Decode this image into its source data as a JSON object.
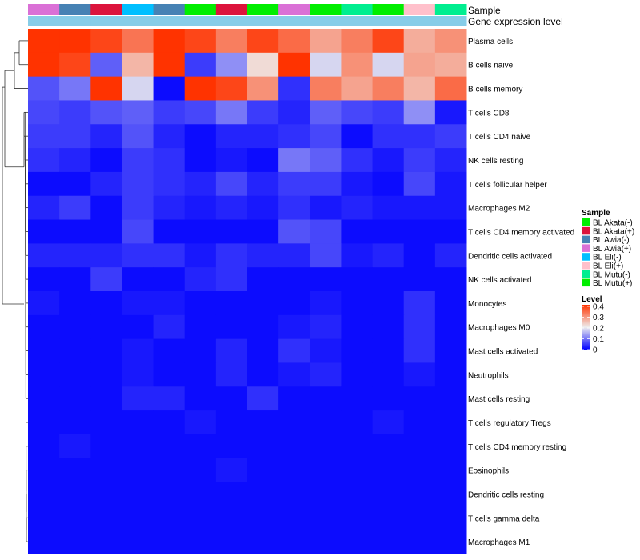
{
  "chart_data": {
    "type": "heatmap",
    "annotation_labels": {
      "sample": "Sample",
      "expression": "Gene expression level"
    },
    "rows": [
      "Plasma cells",
      "B cells naive",
      "B cells memory",
      "T cells CD8",
      "T cells CD4 naive",
      "NK cells resting",
      "T cells follicular helper",
      "Macrophages M2",
      "T cells CD4 memory activated",
      "Dendritic cells activated",
      "NK cells activated",
      "Monocytes",
      "Macrophages M0",
      "Mast cells activated",
      "Neutrophils",
      "Mast cells resting",
      "T cells regulatory  Tregs",
      "T cells CD4 memory resting",
      "Eosinophils",
      "Dendritic cells resting",
      "T cells gamma delta",
      "Macrophages M1"
    ],
    "sample_groups": [
      "BL Awia(+)",
      "BL Awia(-)",
      "BL Akata(+)",
      "BL Eli(-)",
      "BL Awia(-)",
      "BL Akata(-)",
      "BL Akata(+)",
      "BL Mutu(+)",
      "BL Awia(+)",
      "BL Mutu(+)",
      "BL Mutu(-)",
      "BL Mutu(+)",
      "BL Eli(+)",
      "BL Mutu(-)"
    ],
    "expression_colors": [
      "#87cde8",
      "#87cde8",
      "#87cde8",
      "#87cde8",
      "#87cde8",
      "#87cde8",
      "#87cde8",
      "#87cde8",
      "#87cde8",
      "#87cde8",
      "#87cde8",
      "#87cde8",
      "#87cde8",
      "#87cde8"
    ],
    "values": [
      [
        0.4,
        0.4,
        0.38,
        0.33,
        0.4,
        0.38,
        0.32,
        0.38,
        0.34,
        0.28,
        0.32,
        0.38,
        0.27,
        0.3
      ],
      [
        0.4,
        0.38,
        0.08,
        0.26,
        0.42,
        0.05,
        0.12,
        0.22,
        0.42,
        0.18,
        0.3,
        0.18,
        0.28,
        0.27
      ],
      [
        0.07,
        0.1,
        0.42,
        0.18,
        0.01,
        0.42,
        0.38,
        0.3,
        0.04,
        0.32,
        0.28,
        0.32,
        0.26,
        0.34
      ],
      [
        0.06,
        0.05,
        0.07,
        0.08,
        0.05,
        0.06,
        0.1,
        0.05,
        0.03,
        0.08,
        0.06,
        0.05,
        0.12,
        0.02
      ],
      [
        0.05,
        0.05,
        0.03,
        0.07,
        0.03,
        0.01,
        0.03,
        0.03,
        0.04,
        0.06,
        0.01,
        0.04,
        0.04,
        0.05
      ],
      [
        0.04,
        0.03,
        0.01,
        0.05,
        0.04,
        0.01,
        0.02,
        0.01,
        0.1,
        0.08,
        0.04,
        0.02,
        0.05,
        0.03
      ],
      [
        0.01,
        0.01,
        0.03,
        0.05,
        0.04,
        0.03,
        0.06,
        0.03,
        0.05,
        0.05,
        0.02,
        0.01,
        0.06,
        0.02
      ],
      [
        0.03,
        0.05,
        0.01,
        0.05,
        0.03,
        0.02,
        0.03,
        0.02,
        0.04,
        0.02,
        0.03,
        0.02,
        0.02,
        0.02
      ],
      [
        0.01,
        0.01,
        0.01,
        0.06,
        0.01,
        0.01,
        0.01,
        0.01,
        0.07,
        0.06,
        0.01,
        0.01,
        0.01,
        0.01
      ],
      [
        0.03,
        0.03,
        0.03,
        0.04,
        0.04,
        0.02,
        0.04,
        0.03,
        0.03,
        0.06,
        0.02,
        0.03,
        0.01,
        0.03
      ],
      [
        0.01,
        0.01,
        0.05,
        0.01,
        0.01,
        0.03,
        0.04,
        0.01,
        0.01,
        0.01,
        0.01,
        0.01,
        0.01,
        0.01
      ],
      [
        0.02,
        0.01,
        0.01,
        0.02,
        0.02,
        0.01,
        0.01,
        0.01,
        0.01,
        0.02,
        0.01,
        0.01,
        0.04,
        0.01
      ],
      [
        0.01,
        0.01,
        0.01,
        0.01,
        0.03,
        0.01,
        0.01,
        0.01,
        0.02,
        0.03,
        0.01,
        0.01,
        0.04,
        0.01
      ],
      [
        0.01,
        0.01,
        0.01,
        0.02,
        0.01,
        0.01,
        0.03,
        0.01,
        0.04,
        0.02,
        0.01,
        0.01,
        0.04,
        0.01
      ],
      [
        0.01,
        0.01,
        0.01,
        0.02,
        0.01,
        0.01,
        0.03,
        0.01,
        0.02,
        0.03,
        0.01,
        0.01,
        0.02,
        0.01
      ],
      [
        0.01,
        0.01,
        0.01,
        0.03,
        0.03,
        0.01,
        0.01,
        0.04,
        0.01,
        0.01,
        0.01,
        0.01,
        0.01,
        0.01
      ],
      [
        0.01,
        0.01,
        0.01,
        0.01,
        0.01,
        0.02,
        0.01,
        0.01,
        0.01,
        0.01,
        0.01,
        0.02,
        0.01,
        0.01
      ],
      [
        0.01,
        0.02,
        0.01,
        0.01,
        0.01,
        0.01,
        0.01,
        0.01,
        0.01,
        0.01,
        0.01,
        0.01,
        0.01,
        0.01
      ],
      [
        0.01,
        0.01,
        0.01,
        0.01,
        0.01,
        0.01,
        0.02,
        0.01,
        0.01,
        0.01,
        0.01,
        0.01,
        0.01,
        0.01
      ],
      [
        0.01,
        0.01,
        0.01,
        0.01,
        0.01,
        0.01,
        0.01,
        0.01,
        0.01,
        0.01,
        0.01,
        0.01,
        0.01,
        0.01
      ],
      [
        0.01,
        0.01,
        0.01,
        0.01,
        0.01,
        0.01,
        0.01,
        0.01,
        0.01,
        0.01,
        0.01,
        0.01,
        0.01,
        0.01
      ],
      [
        0.01,
        0.01,
        0.01,
        0.01,
        0.01,
        0.01,
        0.01,
        0.01,
        0.01,
        0.01,
        0.01,
        0.01,
        0.01,
        0.01
      ]
    ],
    "color_scale": {
      "stops": [
        0,
        0.2,
        0.4
      ],
      "colors": [
        "#0000ff",
        "#eeeeee",
        "#ff3300"
      ]
    },
    "legend_sample": {
      "title": "Sample",
      "entries": [
        {
          "label": "BL Akata(-)",
          "color": "#00ee00"
        },
        {
          "label": "BL Akata(+)",
          "color": "#dc143c"
        },
        {
          "label": "BL Awia(-)",
          "color": "#4682b4"
        },
        {
          "label": "BL Awia(+)",
          "color": "#da70d6"
        },
        {
          "label": "BL Eli(-)",
          "color": "#00bfff"
        },
        {
          "label": "BL Eli(+)",
          "color": "#ffc0cb"
        },
        {
          "label": "BL Mutu(-)",
          "color": "#00ee90"
        },
        {
          "label": "BL Mutu(+)",
          "color": "#00ee00"
        }
      ]
    },
    "legend_level": {
      "title": "Level",
      "ticks": [
        {
          "label": "0.4",
          "value": 0.4
        },
        {
          "label": "0.3",
          "value": 0.3
        },
        {
          "label": "0.2",
          "value": 0.2
        },
        {
          "label": "0.1",
          "value": 0.1
        },
        {
          "label": "0",
          "value": 0
        }
      ]
    }
  }
}
